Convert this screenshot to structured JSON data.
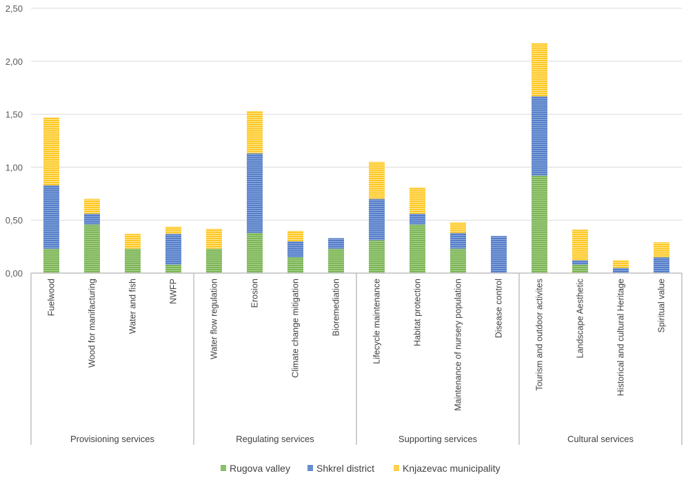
{
  "chart_data": {
    "type": "bar",
    "stacked": true,
    "title": "",
    "xlabel": "",
    "ylabel": "",
    "ylim": [
      0,
      2.5
    ],
    "yticks": [
      "0,00",
      "0,50",
      "1,00",
      "1,50",
      "2,00",
      "2,50"
    ],
    "ytick_values": [
      0,
      0.5,
      1.0,
      1.5,
      2.0,
      2.5
    ],
    "grid": true,
    "legend_position": "bottom",
    "groups": [
      {
        "name": "Provisioning services",
        "categories": [
          "Fuelwood",
          "Wood for manifacturing",
          "Water and fish",
          "NWFP"
        ]
      },
      {
        "name": "Regulating services",
        "categories": [
          "Water flow regulation",
          "Erosion",
          "Climate change mitigation",
          "Bioremediation"
        ]
      },
      {
        "name": "Supporting services",
        "categories": [
          "Lifecycle maintenance",
          "Habitat protection",
          "Maintenance of nursery population",
          "Disease control"
        ]
      },
      {
        "name": "Cultural services",
        "categories": [
          "Tourism and outdoor activites",
          "Landscape Aesthetic",
          "Historical and cultural Heritage",
          "Spiritual value"
        ]
      }
    ],
    "categories": [
      "Fuelwood",
      "Wood for manifacturing",
      "Water and fish",
      "NWFP",
      "Water flow regulation",
      "Erosion",
      "Climate change mitigation",
      "Bioremediation",
      "Lifecycle maintenance",
      "Habitat protection",
      "Maintenance of nursery population",
      "Disease control",
      "Tourism and outdoor activites",
      "Landscape Aesthetic",
      "Historical and cultural Heritage",
      "Spiritual value"
    ],
    "series": [
      {
        "name": "Rugova valley",
        "color": "#70AD47",
        "values": [
          0.23,
          0.46,
          0.23,
          0.08,
          0.23,
          0.38,
          0.15,
          0.23,
          0.31,
          0.46,
          0.23,
          0.0,
          0.92,
          0.08,
          0.0,
          0.0
        ]
      },
      {
        "name": "Shkrel district",
        "color": "#4472C4",
        "values": [
          0.6,
          0.1,
          0.0,
          0.29,
          0.0,
          0.75,
          0.15,
          0.1,
          0.39,
          0.1,
          0.15,
          0.35,
          0.75,
          0.04,
          0.05,
          0.15
        ]
      },
      {
        "name": "Knjazevac municipality",
        "color": "#FFC000",
        "values": [
          0.64,
          0.14,
          0.14,
          0.07,
          0.19,
          0.4,
          0.1,
          0.0,
          0.35,
          0.25,
          0.1,
          0.0,
          0.5,
          0.29,
          0.07,
          0.14
        ]
      }
    ]
  }
}
